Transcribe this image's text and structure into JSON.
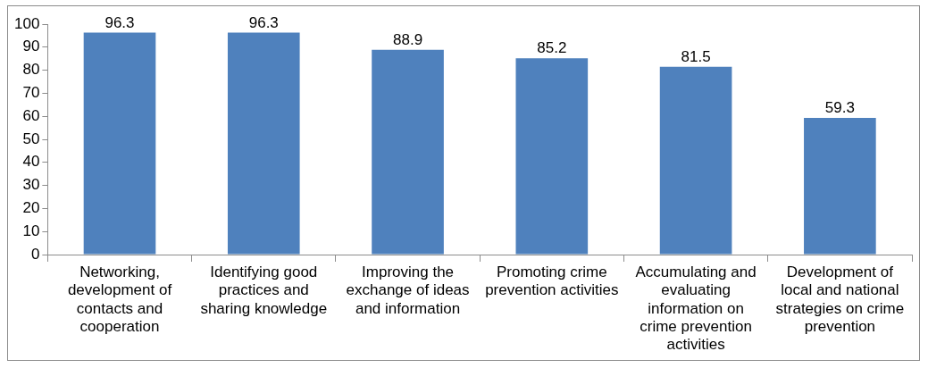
{
  "chart_data": {
    "type": "bar",
    "categories": [
      "Networking, development of contacts and cooperation",
      "Identifying good practices and sharing knowledge",
      "Improving the exchange of ideas and information",
      "Promoting crime prevention activities",
      "Accumulating and evaluating information on crime prevention activities",
      "Development of local and national strategies on crime prevention"
    ],
    "values": [
      96.3,
      96.3,
      88.9,
      85.2,
      81.5,
      59.3
    ],
    "color": "#4f81bd",
    "ylim": [
      0,
      100
    ],
    "yticks": [
      0,
      10,
      20,
      30,
      40,
      50,
      60,
      70,
      80,
      90,
      100
    ],
    "grid": false,
    "data_labels": true,
    "legend": false
  }
}
